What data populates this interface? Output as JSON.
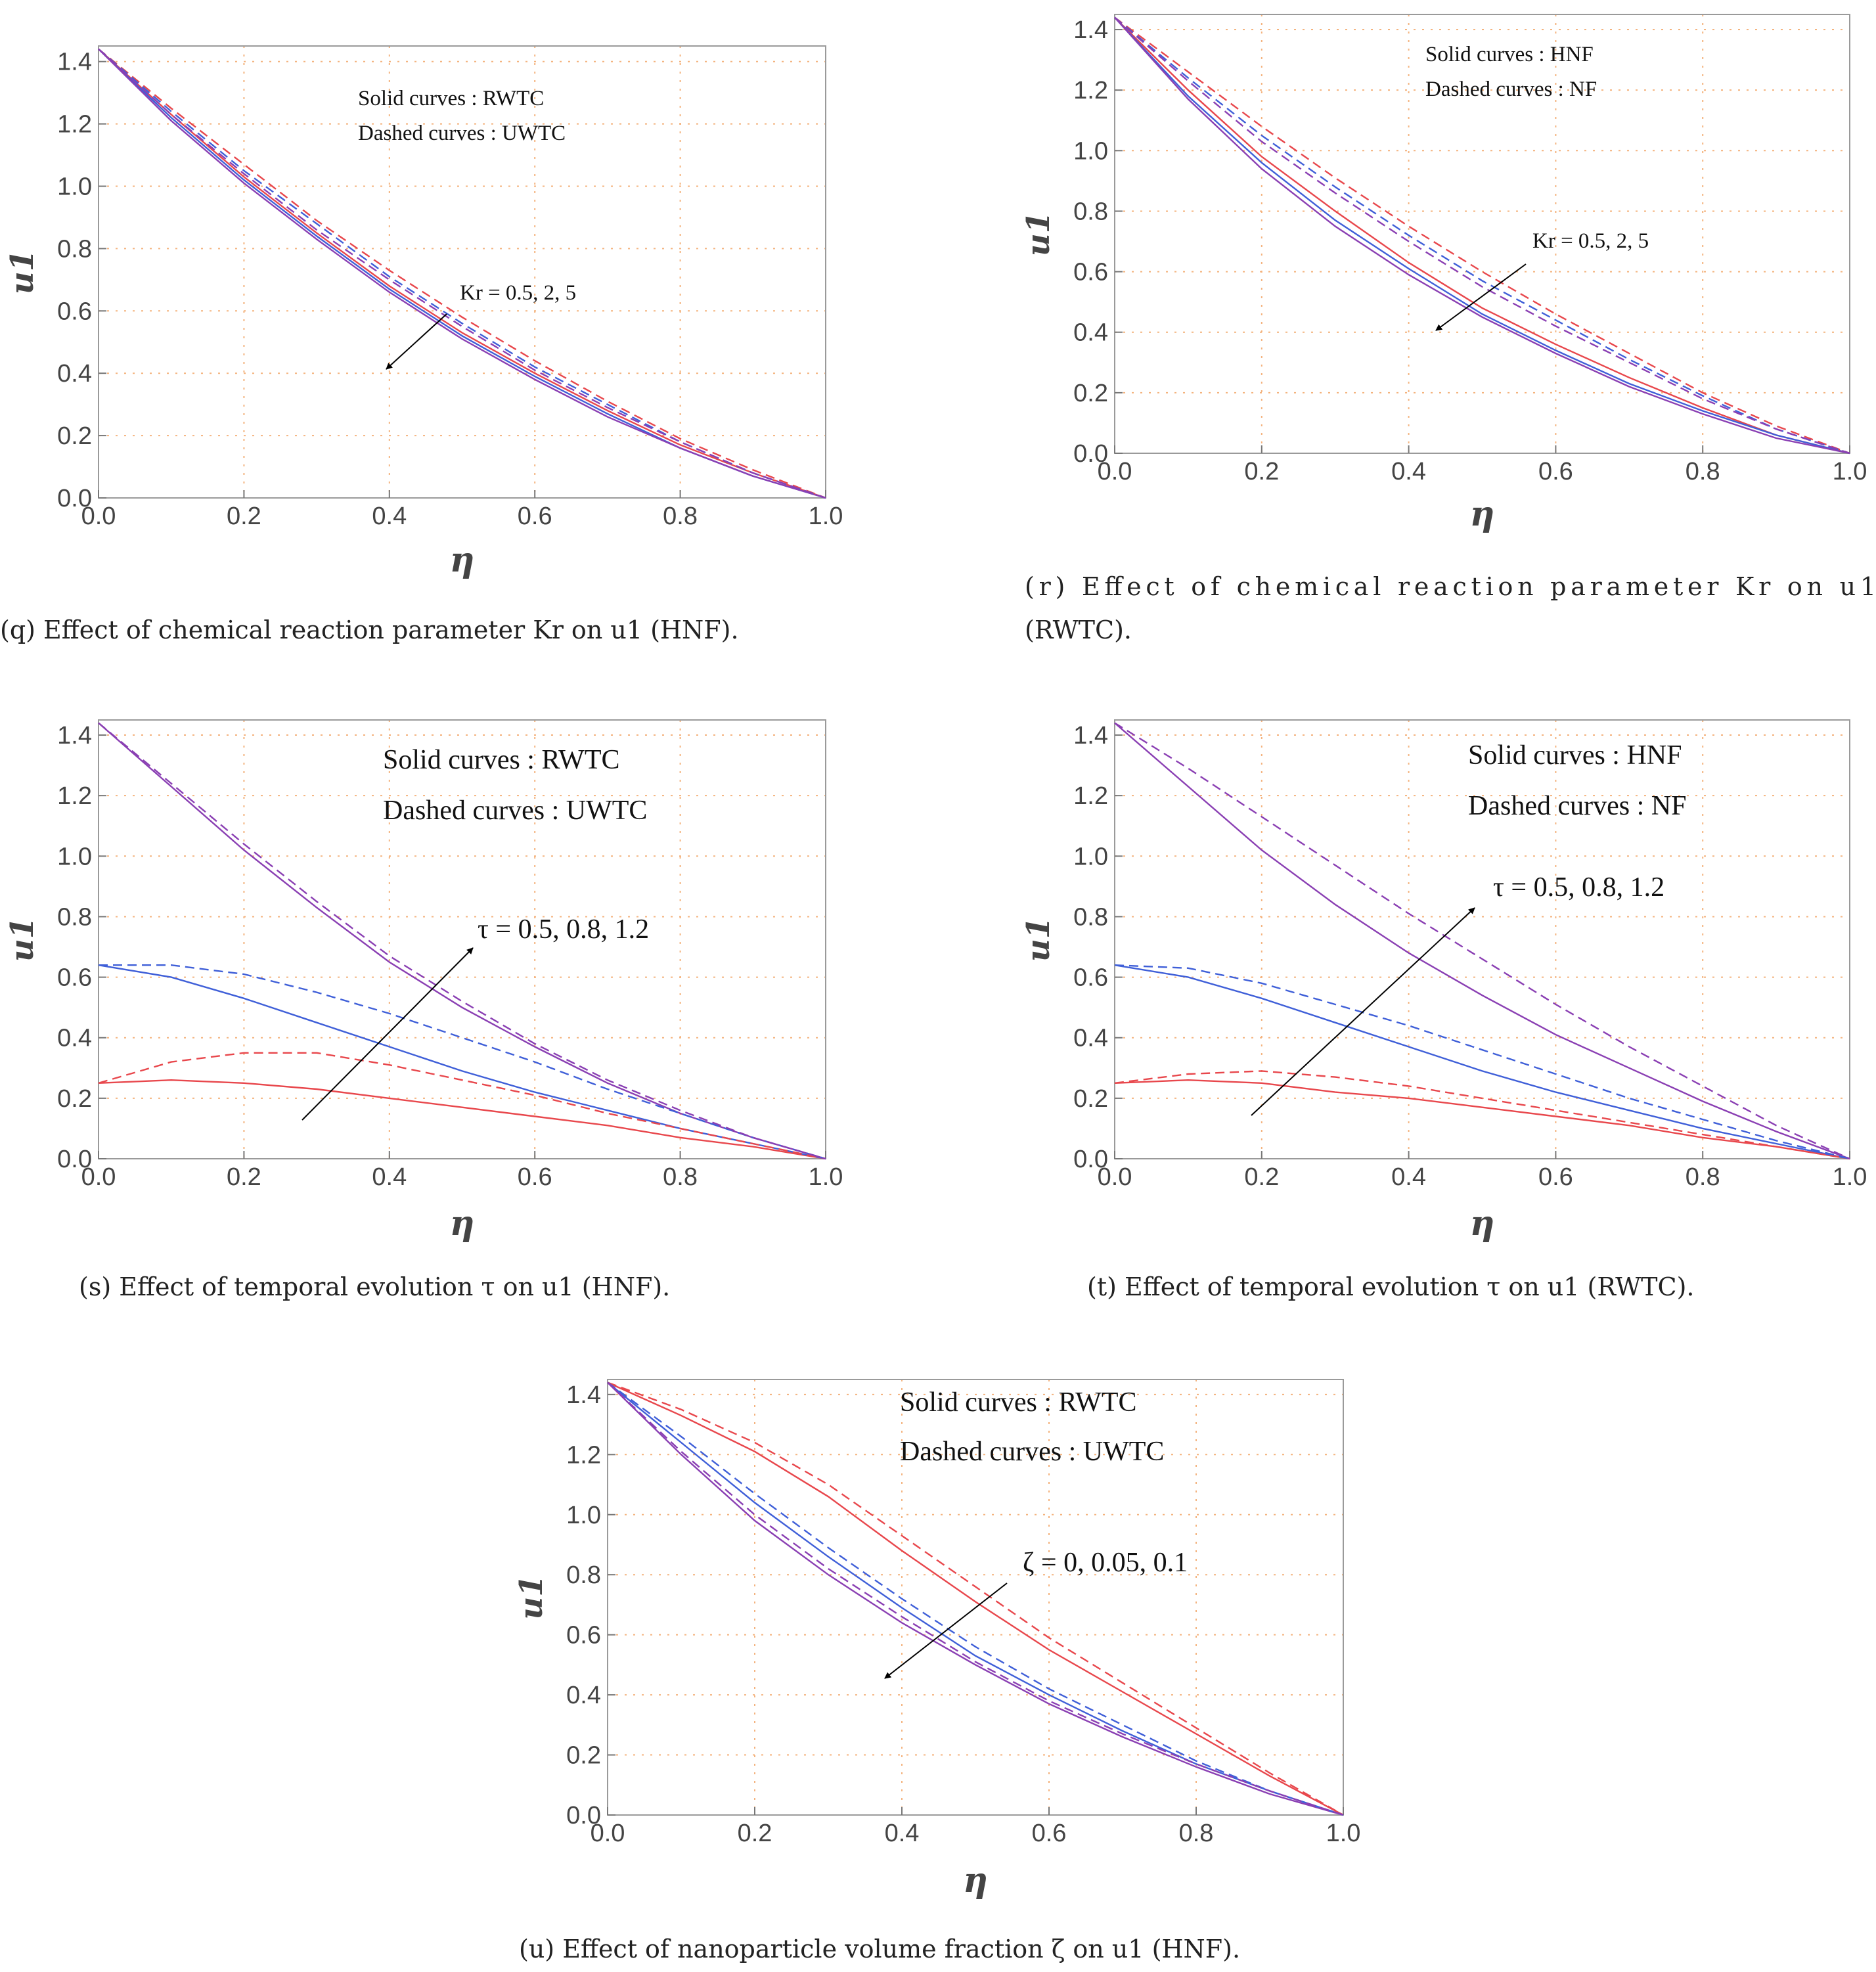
{
  "colors": {
    "red": "#e8474c",
    "blue": "#3f5fd8",
    "purple": "#8a3fb3",
    "grid": "#f4b37e",
    "text": "#222222"
  },
  "chart_data": [
    {
      "id": "q",
      "type": "line",
      "caption": "(q) Effect of chemical reaction parameter Kr on u1 (HNF).",
      "xlabel": "η",
      "ylabel": "u1",
      "xlim": [
        0,
        1
      ],
      "ylim": [
        0,
        1.45
      ],
      "xticks": [
        "0.0",
        "0.2",
        "0.4",
        "0.6",
        "0.8",
        "1.0"
      ],
      "yticks": [
        "0.0",
        "0.2",
        "0.4",
        "0.6",
        "0.8",
        "1.0",
        "1.2",
        "1.4"
      ],
      "notes": [
        "Solid curves : RWTC",
        "Dashed curves : UWTC"
      ],
      "annotation": "Kr = 0.5, 2, 5",
      "series": [
        {
          "name": "RWTC Kr=0.5",
          "color": "red",
          "dash": false,
          "x": [
            0,
            0.1,
            0.2,
            0.3,
            0.4,
            0.5,
            0.6,
            0.7,
            0.8,
            0.9,
            1.0
          ],
          "values": [
            1.44,
            1.23,
            1.03,
            0.85,
            0.68,
            0.53,
            0.4,
            0.28,
            0.17,
            0.08,
            0.0
          ]
        },
        {
          "name": "RWTC Kr=2",
          "color": "blue",
          "dash": false,
          "x": [
            0,
            0.1,
            0.2,
            0.3,
            0.4,
            0.5,
            0.6,
            0.7,
            0.8,
            0.9,
            1.0
          ],
          "values": [
            1.44,
            1.22,
            1.02,
            0.84,
            0.67,
            0.52,
            0.39,
            0.27,
            0.16,
            0.07,
            0.0
          ]
        },
        {
          "name": "RWTC Kr=5",
          "color": "purple",
          "dash": false,
          "x": [
            0,
            0.1,
            0.2,
            0.3,
            0.4,
            0.5,
            0.6,
            0.7,
            0.8,
            0.9,
            1.0
          ],
          "values": [
            1.44,
            1.21,
            1.01,
            0.83,
            0.66,
            0.51,
            0.38,
            0.26,
            0.16,
            0.07,
            0.0
          ]
        },
        {
          "name": "UWTC Kr=0.5",
          "color": "red",
          "dash": true,
          "x": [
            0,
            0.1,
            0.2,
            0.3,
            0.4,
            0.5,
            0.6,
            0.7,
            0.8,
            0.9,
            1.0
          ],
          "values": [
            1.44,
            1.25,
            1.07,
            0.89,
            0.73,
            0.58,
            0.44,
            0.31,
            0.19,
            0.09,
            0.0
          ]
        },
        {
          "name": "UWTC Kr=2",
          "color": "blue",
          "dash": true,
          "x": [
            0,
            0.1,
            0.2,
            0.3,
            0.4,
            0.5,
            0.6,
            0.7,
            0.8,
            0.9,
            1.0
          ],
          "values": [
            1.44,
            1.24,
            1.05,
            0.88,
            0.71,
            0.56,
            0.42,
            0.3,
            0.18,
            0.08,
            0.0
          ]
        },
        {
          "name": "UWTC Kr=5",
          "color": "purple",
          "dash": true,
          "x": [
            0,
            0.1,
            0.2,
            0.3,
            0.4,
            0.5,
            0.6,
            0.7,
            0.8,
            0.9,
            1.0
          ],
          "values": [
            1.44,
            1.23,
            1.04,
            0.86,
            0.7,
            0.55,
            0.41,
            0.29,
            0.18,
            0.08,
            0.0
          ]
        }
      ]
    },
    {
      "id": "r",
      "type": "line",
      "caption": "(r) Effect of chemical reaction parameter Kr on u1 (RWTC).",
      "xlabel": "η",
      "ylabel": "u1",
      "xlim": [
        0,
        1
      ],
      "ylim": [
        0,
        1.45
      ],
      "xticks": [
        "0.0",
        "0.2",
        "0.4",
        "0.6",
        "0.8",
        "1.0"
      ],
      "yticks": [
        "0.0",
        "0.2",
        "0.4",
        "0.6",
        "0.8",
        "1.0",
        "1.2",
        "1.4"
      ],
      "notes": [
        "Solid curves : HNF",
        "Dashed curves : NF"
      ],
      "annotation": "Kr = 0.5, 2, 5",
      "series": [
        {
          "name": "HNF Kr=0.5",
          "color": "red",
          "dash": false,
          "x": [
            0,
            0.1,
            0.2,
            0.3,
            0.4,
            0.5,
            0.6,
            0.7,
            0.8,
            0.9,
            1.0
          ],
          "values": [
            1.44,
            1.2,
            0.98,
            0.8,
            0.63,
            0.48,
            0.36,
            0.25,
            0.15,
            0.06,
            0.0
          ]
        },
        {
          "name": "HNF Kr=2",
          "color": "blue",
          "dash": false,
          "x": [
            0,
            0.1,
            0.2,
            0.3,
            0.4,
            0.5,
            0.6,
            0.7,
            0.8,
            0.9,
            1.0
          ],
          "values": [
            1.44,
            1.18,
            0.96,
            0.77,
            0.61,
            0.46,
            0.34,
            0.23,
            0.14,
            0.06,
            0.0
          ]
        },
        {
          "name": "HNF Kr=5",
          "color": "purple",
          "dash": false,
          "x": [
            0,
            0.1,
            0.2,
            0.3,
            0.4,
            0.5,
            0.6,
            0.7,
            0.8,
            0.9,
            1.0
          ],
          "values": [
            1.44,
            1.17,
            0.94,
            0.75,
            0.59,
            0.45,
            0.33,
            0.22,
            0.13,
            0.05,
            0.0
          ]
        },
        {
          "name": "NF Kr=0.5",
          "color": "red",
          "dash": true,
          "x": [
            0,
            0.1,
            0.2,
            0.3,
            0.4,
            0.5,
            0.6,
            0.7,
            0.8,
            0.9,
            1.0
          ],
          "values": [
            1.44,
            1.26,
            1.08,
            0.91,
            0.75,
            0.6,
            0.46,
            0.33,
            0.2,
            0.09,
            0.0
          ]
        },
        {
          "name": "NF Kr=2",
          "color": "blue",
          "dash": true,
          "x": [
            0,
            0.1,
            0.2,
            0.3,
            0.4,
            0.5,
            0.6,
            0.7,
            0.8,
            0.9,
            1.0
          ],
          "values": [
            1.44,
            1.24,
            1.05,
            0.88,
            0.72,
            0.57,
            0.44,
            0.31,
            0.19,
            0.08,
            0.0
          ]
        },
        {
          "name": "NF Kr=5",
          "color": "purple",
          "dash": true,
          "x": [
            0,
            0.1,
            0.2,
            0.3,
            0.4,
            0.5,
            0.6,
            0.7,
            0.8,
            0.9,
            1.0
          ],
          "values": [
            1.44,
            1.23,
            1.03,
            0.86,
            0.7,
            0.55,
            0.42,
            0.3,
            0.18,
            0.08,
            0.0
          ]
        }
      ]
    },
    {
      "id": "s",
      "type": "line",
      "caption": "(s) Effect of temporal evolution τ on u1 (HNF).",
      "xlabel": "η",
      "ylabel": "u1",
      "xlim": [
        0,
        1
      ],
      "ylim": [
        0,
        1.45
      ],
      "xticks": [
        "0.0",
        "0.2",
        "0.4",
        "0.6",
        "0.8",
        "1.0"
      ],
      "yticks": [
        "0.0",
        "0.2",
        "0.4",
        "0.6",
        "0.8",
        "1.0",
        "1.2",
        "1.4"
      ],
      "notes": [
        "Solid curves : RWTC",
        "Dashed curves : UWTC"
      ],
      "annotation": "τ = 0.5, 0.8, 1.2",
      "series": [
        {
          "name": "RWTC τ=0.5",
          "color": "red",
          "dash": false,
          "x": [
            0,
            0.1,
            0.2,
            0.3,
            0.4,
            0.5,
            0.6,
            0.7,
            0.8,
            0.9,
            1.0
          ],
          "values": [
            0.25,
            0.26,
            0.25,
            0.23,
            0.2,
            0.17,
            0.14,
            0.11,
            0.07,
            0.04,
            0.0
          ]
        },
        {
          "name": "RWTC τ=0.8",
          "color": "blue",
          "dash": false,
          "x": [
            0,
            0.1,
            0.2,
            0.3,
            0.4,
            0.5,
            0.6,
            0.7,
            0.8,
            0.9,
            1.0
          ],
          "values": [
            0.64,
            0.6,
            0.53,
            0.45,
            0.37,
            0.29,
            0.22,
            0.16,
            0.1,
            0.05,
            0.0
          ]
        },
        {
          "name": "RWTC τ=1.2",
          "color": "purple",
          "dash": false,
          "x": [
            0,
            0.1,
            0.2,
            0.3,
            0.4,
            0.5,
            0.6,
            0.7,
            0.8,
            0.9,
            1.0
          ],
          "values": [
            1.44,
            1.23,
            1.02,
            0.83,
            0.65,
            0.5,
            0.37,
            0.25,
            0.15,
            0.07,
            0.0
          ]
        },
        {
          "name": "UWTC τ=0.5",
          "color": "red",
          "dash": true,
          "x": [
            0,
            0.1,
            0.2,
            0.3,
            0.4,
            0.5,
            0.6,
            0.7,
            0.8,
            0.9,
            1.0
          ],
          "values": [
            0.25,
            0.32,
            0.35,
            0.35,
            0.31,
            0.26,
            0.21,
            0.15,
            0.1,
            0.05,
            0.0
          ]
        },
        {
          "name": "UWTC τ=0.8",
          "color": "blue",
          "dash": true,
          "x": [
            0,
            0.1,
            0.2,
            0.3,
            0.4,
            0.5,
            0.6,
            0.7,
            0.8,
            0.9,
            1.0
          ],
          "values": [
            0.64,
            0.64,
            0.61,
            0.55,
            0.48,
            0.4,
            0.32,
            0.23,
            0.15,
            0.07,
            0.0
          ]
        },
        {
          "name": "UWTC τ=1.2",
          "color": "purple",
          "dash": true,
          "x": [
            0,
            0.1,
            0.2,
            0.3,
            0.4,
            0.5,
            0.6,
            0.7,
            0.8,
            0.9,
            1.0
          ],
          "values": [
            1.44,
            1.24,
            1.04,
            0.85,
            0.67,
            0.52,
            0.38,
            0.26,
            0.16,
            0.07,
            0.0
          ]
        }
      ]
    },
    {
      "id": "t",
      "type": "line",
      "caption": "(t) Effect of temporal evolution τ on u1 (RWTC).",
      "xlabel": "η",
      "ylabel": "u1",
      "xlim": [
        0,
        1
      ],
      "ylim": [
        0,
        1.45
      ],
      "xticks": [
        "0.0",
        "0.2",
        "0.4",
        "0.6",
        "0.8",
        "1.0"
      ],
      "yticks": [
        "0.0",
        "0.2",
        "0.4",
        "0.6",
        "0.8",
        "1.0",
        "1.2",
        "1.4"
      ],
      "notes": [
        "Solid curves : HNF",
        "Dashed curves : NF"
      ],
      "annotation": "τ = 0.5, 0.8, 1.2",
      "series": [
        {
          "name": "HNF τ=0.5",
          "color": "red",
          "dash": false,
          "x": [
            0,
            0.1,
            0.2,
            0.3,
            0.4,
            0.5,
            0.6,
            0.7,
            0.8,
            0.9,
            1.0
          ],
          "values": [
            0.25,
            0.26,
            0.25,
            0.22,
            0.2,
            0.17,
            0.14,
            0.11,
            0.07,
            0.04,
            0.0
          ]
        },
        {
          "name": "HNF τ=0.8",
          "color": "blue",
          "dash": false,
          "x": [
            0,
            0.1,
            0.2,
            0.3,
            0.4,
            0.5,
            0.6,
            0.7,
            0.8,
            0.9,
            1.0
          ],
          "values": [
            0.64,
            0.6,
            0.53,
            0.45,
            0.37,
            0.29,
            0.22,
            0.16,
            0.1,
            0.05,
            0.0
          ]
        },
        {
          "name": "HNF τ=1.2",
          "color": "purple",
          "dash": false,
          "x": [
            0,
            0.1,
            0.2,
            0.3,
            0.4,
            0.5,
            0.6,
            0.7,
            0.8,
            0.9,
            1.0
          ],
          "values": [
            1.44,
            1.23,
            1.02,
            0.84,
            0.68,
            0.54,
            0.41,
            0.3,
            0.19,
            0.09,
            0.0
          ]
        },
        {
          "name": "NF τ=0.5",
          "color": "red",
          "dash": true,
          "x": [
            0,
            0.1,
            0.2,
            0.3,
            0.4,
            0.5,
            0.6,
            0.7,
            0.8,
            0.9,
            1.0
          ],
          "values": [
            0.25,
            0.28,
            0.29,
            0.27,
            0.24,
            0.2,
            0.16,
            0.12,
            0.08,
            0.04,
            0.0
          ]
        },
        {
          "name": "NF τ=0.8",
          "color": "blue",
          "dash": true,
          "x": [
            0,
            0.1,
            0.2,
            0.3,
            0.4,
            0.5,
            0.6,
            0.7,
            0.8,
            0.9,
            1.0
          ],
          "values": [
            0.64,
            0.63,
            0.58,
            0.51,
            0.44,
            0.36,
            0.28,
            0.2,
            0.13,
            0.06,
            0.0
          ]
        },
        {
          "name": "NF τ=1.2",
          "color": "purple",
          "dash": true,
          "x": [
            0,
            0.1,
            0.2,
            0.3,
            0.4,
            0.5,
            0.6,
            0.7,
            0.8,
            0.9,
            1.0
          ],
          "values": [
            1.44,
            1.29,
            1.13,
            0.97,
            0.81,
            0.66,
            0.51,
            0.37,
            0.24,
            0.11,
            0.0
          ]
        }
      ]
    },
    {
      "id": "u",
      "type": "line",
      "caption": "(u) Effect of nanoparticle volume fraction ζ on u1 (HNF).",
      "xlabel": "η",
      "ylabel": "u1",
      "xlim": [
        0,
        1
      ],
      "ylim": [
        0,
        1.45
      ],
      "xticks": [
        "0.0",
        "0.2",
        "0.4",
        "0.6",
        "0.8",
        "1.0"
      ],
      "yticks": [
        "0.0",
        "0.2",
        "0.4",
        "0.6",
        "0.8",
        "1.0",
        "1.2",
        "1.4"
      ],
      "notes": [
        "Solid curves : RWTC",
        "Dashed curves : UWTC"
      ],
      "annotation": "ζ = 0, 0.05, 0.1",
      "series": [
        {
          "name": "RWTC ζ=0",
          "color": "red",
          "dash": false,
          "x": [
            0,
            0.1,
            0.2,
            0.3,
            0.4,
            0.5,
            0.6,
            0.7,
            0.8,
            0.9,
            1.0
          ],
          "values": [
            1.44,
            1.33,
            1.21,
            1.06,
            0.88,
            0.71,
            0.55,
            0.41,
            0.27,
            0.13,
            0.0
          ]
        },
        {
          "name": "RWTC ζ=0.05",
          "color": "blue",
          "dash": false,
          "x": [
            0,
            0.1,
            0.2,
            0.3,
            0.4,
            0.5,
            0.6,
            0.7,
            0.8,
            0.9,
            1.0
          ],
          "values": [
            1.44,
            1.24,
            1.04,
            0.86,
            0.69,
            0.53,
            0.4,
            0.28,
            0.17,
            0.08,
            0.0
          ]
        },
        {
          "name": "RWTC ζ=0.1",
          "color": "purple",
          "dash": false,
          "x": [
            0,
            0.1,
            0.2,
            0.3,
            0.4,
            0.5,
            0.6,
            0.7,
            0.8,
            0.9,
            1.0
          ],
          "values": [
            1.44,
            1.2,
            0.98,
            0.8,
            0.64,
            0.5,
            0.37,
            0.26,
            0.16,
            0.07,
            0.0
          ]
        },
        {
          "name": "UWTC ζ=0",
          "color": "red",
          "dash": true,
          "x": [
            0,
            0.1,
            0.2,
            0.3,
            0.4,
            0.5,
            0.6,
            0.7,
            0.8,
            0.9,
            1.0
          ],
          "values": [
            1.44,
            1.35,
            1.24,
            1.1,
            0.93,
            0.76,
            0.59,
            0.44,
            0.29,
            0.14,
            0.0
          ]
        },
        {
          "name": "UWTC ζ=0.05",
          "color": "blue",
          "dash": true,
          "x": [
            0,
            0.1,
            0.2,
            0.3,
            0.4,
            0.5,
            0.6,
            0.7,
            0.8,
            0.9,
            1.0
          ],
          "values": [
            1.44,
            1.26,
            1.07,
            0.89,
            0.72,
            0.56,
            0.42,
            0.3,
            0.18,
            0.08,
            0.0
          ]
        },
        {
          "name": "UWTC ζ=0.1",
          "color": "purple",
          "dash": true,
          "x": [
            0,
            0.1,
            0.2,
            0.3,
            0.4,
            0.5,
            0.6,
            0.7,
            0.8,
            0.9,
            1.0
          ],
          "values": [
            1.44,
            1.21,
            1.0,
            0.82,
            0.66,
            0.51,
            0.38,
            0.27,
            0.17,
            0.08,
            0.0
          ]
        }
      ]
    }
  ]
}
